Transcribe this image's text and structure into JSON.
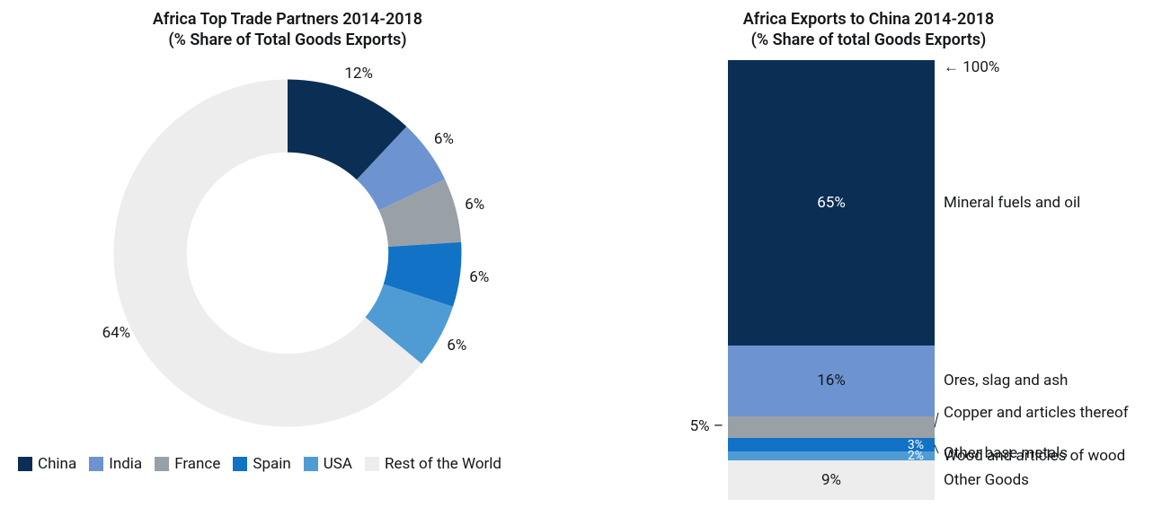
{
  "colors": {
    "c0": "#0b2e55",
    "c1": "#6d93d0",
    "c2": "#99a0a6",
    "c3": "#1272c5",
    "c4": "#4f9cd5",
    "c5": "#ededed",
    "text": "#14171a",
    "leader": "#14171a"
  },
  "fonts": {
    "title_size": 18,
    "label_size": 17,
    "legend_size": 17
  },
  "donut": {
    "title": "Africa Top Trade Partners 2014-2018\n(% Share of Total Goods Exports)",
    "inner_radius_ratio": 0.58,
    "slices": [
      {
        "label": "China",
        "value": 12,
        "display": "12%",
        "color_key": "c0"
      },
      {
        "label": "India",
        "value": 6,
        "display": "6%",
        "color_key": "c1"
      },
      {
        "label": "France",
        "value": 6,
        "display": "6%",
        "color_key": "c2"
      },
      {
        "label": "Spain",
        "value": 6,
        "display": "6%",
        "color_key": "c3"
      },
      {
        "label": "USA",
        "value": 6,
        "display": "6%",
        "color_key": "c4"
      },
      {
        "label": "Rest of the World",
        "value": 64,
        "display": "64%",
        "color_key": "c5"
      }
    ]
  },
  "stacked": {
    "title": "Africa Exports to China 2014-2018\n(% Share of total Goods Exports)",
    "top_marker": "← 100%",
    "segments": [
      {
        "category": "Mineral fuels and oil",
        "value": 65,
        "display": "65%",
        "color_key": "c0",
        "text_color": "#ffffff",
        "value_inside": true,
        "cat_outside": true
      },
      {
        "category": "Ores, slag and ash",
        "value": 16,
        "display": "16%",
        "color_key": "c1",
        "text_color": "#14171a",
        "value_inside": true,
        "cat_outside": true
      },
      {
        "category": "Copper and articles thereof",
        "value": 5,
        "display": "5%",
        "color_key": "c2",
        "text_color": "#14171a",
        "value_inside": false,
        "value_left": true,
        "cat_outside": true,
        "leader": true
      },
      {
        "category": "Other base metals",
        "value": 3,
        "display": "3%",
        "color_key": "c3",
        "text_color": "#ffffff",
        "value_inside": true,
        "cat_outside": true,
        "leader": true
      },
      {
        "category": "Wood and articles of wood",
        "value": 2,
        "display": "2%",
        "color_key": "c4",
        "text_color": "#ffffff",
        "value_inside": true,
        "cat_outside": true
      },
      {
        "category": "Other Goods",
        "value": 9,
        "display": "9%",
        "color_key": "c5",
        "text_color": "#14171a",
        "value_inside": true,
        "cat_outside": true
      }
    ]
  },
  "legend": [
    {
      "label": "China",
      "color_key": "c0"
    },
    {
      "label": "India",
      "color_key": "c1"
    },
    {
      "label": "France",
      "color_key": "c2"
    },
    {
      "label": "Spain",
      "color_key": "c3"
    },
    {
      "label": "USA",
      "color_key": "c4"
    },
    {
      "label": "Rest of the World",
      "color_key": "c5"
    }
  ]
}
